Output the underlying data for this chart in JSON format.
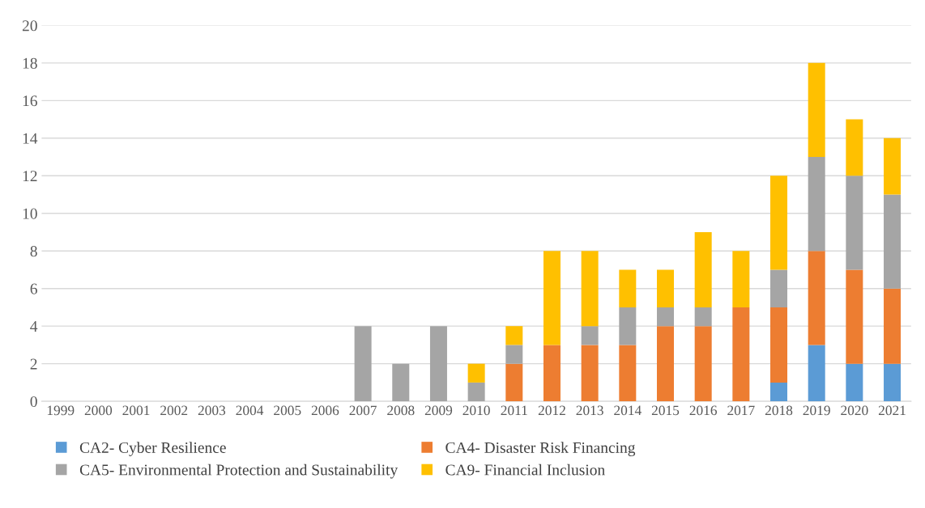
{
  "chart_data": {
    "type": "bar",
    "stacked": true,
    "categories": [
      "1999",
      "2000",
      "2001",
      "2002",
      "2003",
      "2004",
      "2005",
      "2006",
      "2007",
      "2008",
      "2009",
      "2010",
      "2011",
      "2012",
      "2013",
      "2014",
      "2015",
      "2016",
      "2017",
      "2018",
      "2019",
      "2020",
      "2021"
    ],
    "series": [
      {
        "name": "CA2- Cyber Resilience",
        "color": "#5b9bd5",
        "values": [
          0,
          0,
          0,
          0,
          0,
          0,
          0,
          0,
          0,
          0,
          0,
          0,
          0,
          0,
          0,
          0,
          0,
          0,
          0,
          1,
          3,
          2,
          2
        ]
      },
      {
        "name": "CA4- Disaster Risk Financing",
        "color": "#ed7d31",
        "values": [
          0,
          0,
          0,
          0,
          0,
          0,
          0,
          0,
          0,
          0,
          0,
          0,
          2,
          3,
          3,
          3,
          4,
          4,
          5,
          4,
          5,
          5,
          4
        ]
      },
      {
        "name": "CA5- Environmental Protection and Sustainability",
        "color": "#a5a5a5",
        "values": [
          0,
          0,
          0,
          0,
          0,
          0,
          0,
          0,
          4,
          2,
          4,
          1,
          1,
          0,
          1,
          2,
          1,
          1,
          0,
          2,
          5,
          5,
          5
        ]
      },
      {
        "name": "CA9- Financial Inclusion",
        "color": "#ffc000",
        "values": [
          0,
          0,
          0,
          0,
          0,
          0,
          0,
          0,
          0,
          0,
          0,
          1,
          1,
          5,
          4,
          2,
          2,
          4,
          3,
          5,
          5,
          3,
          3
        ]
      }
    ],
    "ylim": [
      0,
      20
    ],
    "yticks": [
      0,
      2,
      4,
      6,
      8,
      10,
      12,
      14,
      16,
      18,
      20
    ],
    "grid": "y",
    "legend": "bottom"
  }
}
